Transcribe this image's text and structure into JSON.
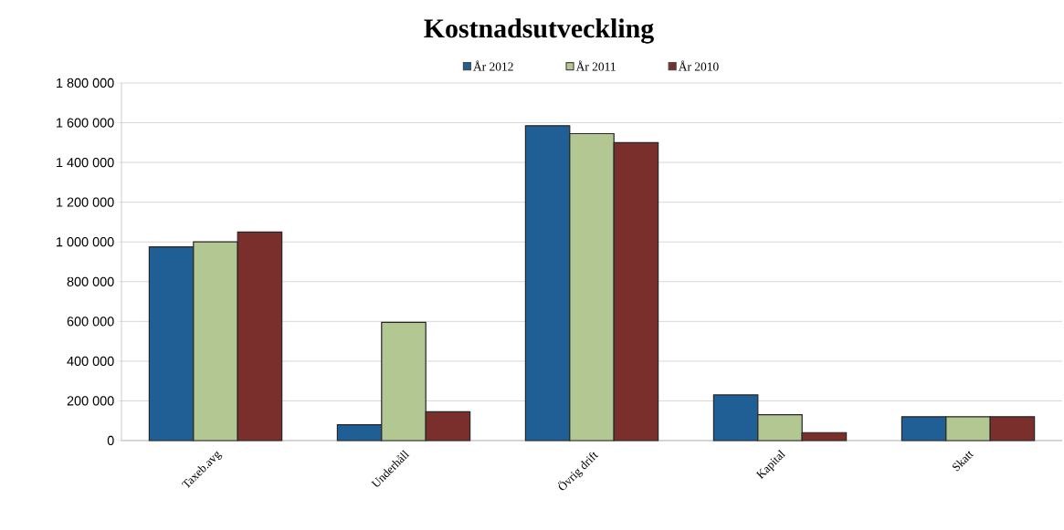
{
  "chart_data": {
    "type": "bar",
    "title": "Kostnadsutveckling",
    "categories": [
      "Taxeb.avg",
      "Underhåll",
      "Övrig drift",
      "Kapital",
      "Skatt"
    ],
    "series": [
      {
        "name": "År 2012",
        "color": "#1f5f96",
        "values": [
          975000,
          80000,
          1585000,
          230000,
          120000
        ]
      },
      {
        "name": "År 2011",
        "color": "#b3c792",
        "values": [
          1000000,
          595000,
          1545000,
          130000,
          120000
        ]
      },
      {
        "name": "År 2010",
        "color": "#7b2f2c",
        "values": [
          1050000,
          145000,
          1500000,
          40000,
          120000
        ]
      }
    ],
    "ylim": [
      0,
      1800000
    ],
    "yticks": [
      {
        "value": 0,
        "label": "0"
      },
      {
        "value": 200000,
        "label": "200 000"
      },
      {
        "value": 400000,
        "label": "400 000"
      },
      {
        "value": 600000,
        "label": "600 000"
      },
      {
        "value": 800000,
        "label": "800 000"
      },
      {
        "value": 1000000,
        "label": "1 000 000"
      },
      {
        "value": 1200000,
        "label": "1 200 000"
      },
      {
        "value": 1400000,
        "label": "1 400 000"
      },
      {
        "value": 1600000,
        "label": "1 600 000"
      },
      {
        "value": 1800000,
        "label": "1 800 000"
      }
    ],
    "grid": "y",
    "legend": "top"
  }
}
